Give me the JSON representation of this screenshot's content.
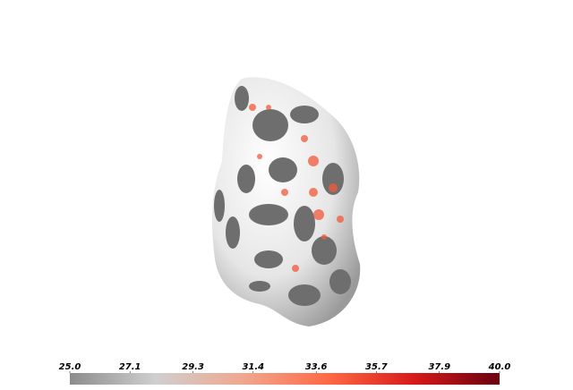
{
  "chart_data": {
    "type": "colorbar",
    "clim": [
      25,
      40
    ],
    "ticks": [
      {
        "value": 25,
        "label": "25.0"
      },
      27.1,
      29.3,
      31.4,
      33.6,
      35.7,
      37.9,
      {
        "value": 40,
        "label": "40.0"
      }
    ],
    "colormap": [
      "#8c8c8c",
      "#cfcfcf",
      "#f0a890",
      "#ff6a45",
      "#d81a1a",
      "#6a0010"
    ]
  }
}
